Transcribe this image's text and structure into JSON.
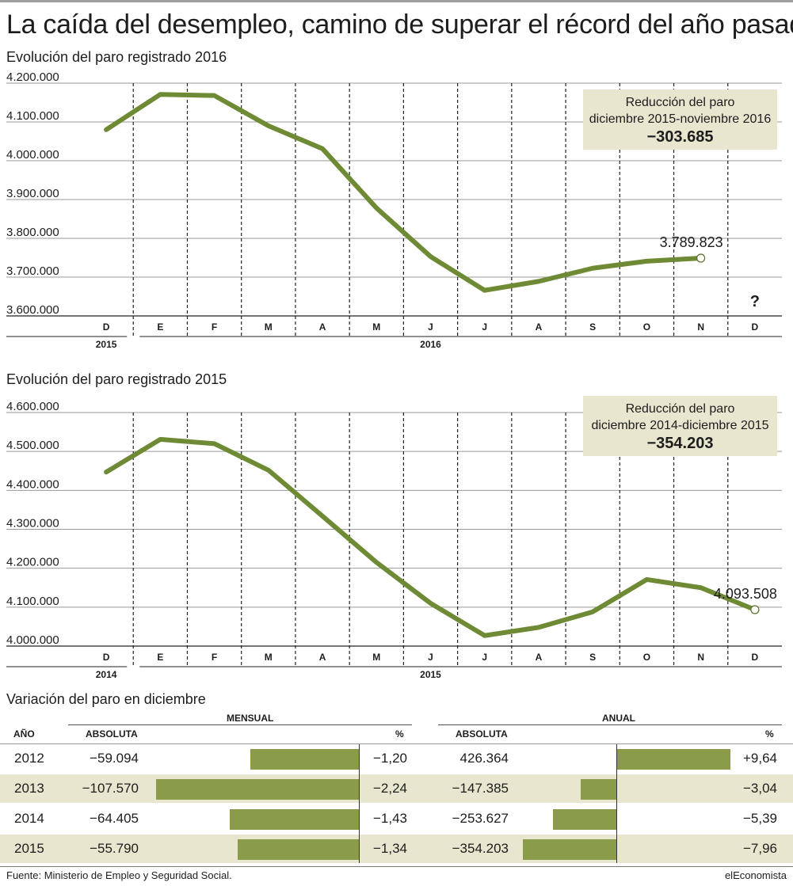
{
  "title": "La caída del desempleo, camino de superar el récord del año pasado",
  "chart_data": [
    {
      "type": "line",
      "title": "Evolución del paro registrado 2016",
      "categories": [
        "D",
        "E",
        "F",
        "M",
        "A",
        "M",
        "J",
        "J",
        "A",
        "S",
        "O",
        "N",
        "D"
      ],
      "year_labels": {
        "first": "2015",
        "rest": "2016"
      },
      "y_tick_labels": [
        "4.200.000",
        "4.100.000",
        "4.000.000",
        "3.900.000",
        "3.800.000",
        "3.700.000",
        "3.600.000"
      ],
      "ylim": [
        3600000,
        4200000
      ],
      "values": [
        4080000,
        4171000,
        4168000,
        4090000,
        4031000,
        3878000,
        3753000,
        3666000,
        3689000,
        3723000,
        3741000,
        3749000,
        null
      ],
      "end_label": "3.789.823",
      "unknown_label": "?",
      "callout": {
        "line1": "Reducción del paro",
        "line2": "diciembre 2015-noviembre 2016",
        "value": "−303.685"
      },
      "color": "#6f8a34"
    },
    {
      "type": "line",
      "title": "Evolución del paro registrado 2015",
      "categories": [
        "D",
        "E",
        "F",
        "M",
        "A",
        "M",
        "J",
        "J",
        "A",
        "S",
        "O",
        "N",
        "D"
      ],
      "year_labels": {
        "first": "2014",
        "rest": "2015"
      },
      "y_tick_labels": [
        "4.600.000",
        "4.500.000",
        "4.400.000",
        "4.300.000",
        "4.200.000",
        "4.100.000",
        "4.000.000"
      ],
      "ylim": [
        4000000,
        4600000
      ],
      "values": [
        4447000,
        4531000,
        4520000,
        4452000,
        4334000,
        4215000,
        4110000,
        4027000,
        4048000,
        4088000,
        4171000,
        4150000,
        4093508
      ],
      "end_label": "4.093.508",
      "callout": {
        "line1": "Reducción del paro",
        "line2": "diciembre 2014-diciembre 2015",
        "value": "−354.203"
      },
      "color": "#6f8a34"
    },
    {
      "type": "table",
      "title": "Variación del paro en diciembre",
      "group_headers": {
        "mensual": "MENSUAL",
        "anual": "ANUAL"
      },
      "column_headers": {
        "year": "AÑO",
        "abs1": "ABSOLUTA",
        "pct1": "%",
        "abs2": "ABSOLUTA",
        "pct2": "%"
      },
      "rows": [
        {
          "year": "2012",
          "mensual_abs": "−59.094",
          "mensual_pct": "−1,20",
          "mensual_value": -1.2,
          "anual_abs": "426.364",
          "anual_pct": "+9,64",
          "anual_value": 9.64
        },
        {
          "year": "2013",
          "mensual_abs": "−107.570",
          "mensual_pct": "−2,24",
          "mensual_value": -2.24,
          "anual_abs": "−147.385",
          "anual_pct": "−3,04",
          "anual_value": -3.04
        },
        {
          "year": "2014",
          "mensual_abs": "−64.405",
          "mensual_pct": "−1,43",
          "mensual_value": -1.43,
          "anual_abs": "−253.627",
          "anual_pct": "−5,39",
          "anual_value": -5.39
        },
        {
          "year": "2015",
          "mensual_abs": "−55.790",
          "mensual_pct": "−1,34",
          "mensual_value": -1.34,
          "anual_abs": "−354.203",
          "anual_pct": "−7,96",
          "anual_value": -7.96
        }
      ],
      "bar_color": "#8a9c49",
      "row_shade": "#e8e6cf"
    }
  ],
  "footer": {
    "source": "Fuente: Ministerio de Empleo y Seguridad Social.",
    "brand": "elEconomista"
  }
}
